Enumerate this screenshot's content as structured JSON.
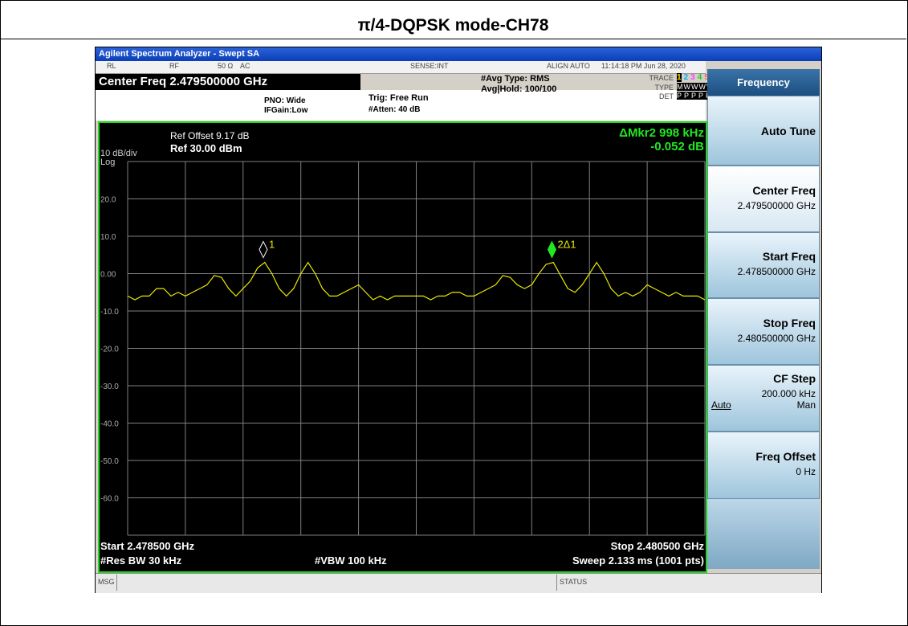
{
  "title": "π/4-DQPSK mode-CH78",
  "window_title": "Agilent Spectrum Analyzer - Swept SA",
  "status": {
    "rl": "RL",
    "rf": "RF",
    "imp": "50 Ω",
    "ac": "AC",
    "sense": "SENSE:INT",
    "align": "ALIGN AUTO",
    "time": "11:14:18 PM Jun 28, 2020"
  },
  "center_freq": "Center Freq 2.479500000 GHz",
  "pno": "PNO: Wide",
  "ifgain": "IFGain:Low",
  "trig": "Trig: Free Run",
  "atten": "#Atten: 40 dB",
  "avg_type": "#Avg Type: RMS",
  "avg_hold": "Avg|Hold: 100/100",
  "trace_info": {
    "trace_label": "TRACE",
    "trace_nums": [
      "1",
      "2",
      "3",
      "4",
      "5",
      "6"
    ],
    "type_label": "TYPE",
    "type_value": "MWWWWW",
    "det_label": "DET",
    "det_value": "PPPPPP"
  },
  "plot": {
    "type": "line",
    "ref_offset": "Ref Offset 9.17 dB",
    "ref": "Ref 30.00 dBm",
    "scale": "10 dB/div",
    "log": "Log",
    "marker_readout": [
      "ΔMkr2 998 kHz",
      "-0.052 dB"
    ],
    "ylim": [
      -70,
      30
    ],
    "yticks": [
      {
        "value": 20,
        "label": "20.0"
      },
      {
        "value": 10,
        "label": "10.0"
      },
      {
        "value": 0,
        "label": "0.00"
      },
      {
        "value": -10,
        "label": "-10.0"
      },
      {
        "value": -20,
        "label": "-20.0"
      },
      {
        "value": -30,
        "label": "-30.0"
      },
      {
        "value": -40,
        "label": "-40.0"
      },
      {
        "value": -50,
        "label": "-50.0"
      },
      {
        "value": -60,
        "label": "-60.0"
      }
    ],
    "xlim": [
      2.4785,
      2.4805
    ],
    "color": "#e8e800",
    "values": [
      -6,
      -7,
      -6,
      -6,
      -4,
      -4,
      -6,
      -5,
      -6,
      -5,
      -4,
      -3,
      -0.5,
      -1,
      -4,
      -6,
      -4,
      -2,
      1.5,
      3,
      0,
      -4,
      -6,
      -4,
      0,
      3,
      0,
      -4,
      -6,
      -6,
      -5,
      -4,
      -3,
      -5,
      -7,
      -6,
      -7,
      -6,
      -6,
      -6,
      -6,
      -6,
      -7,
      -6,
      -6,
      -5,
      -5,
      -6,
      -6,
      -5,
      -4,
      -3,
      -0.5,
      -1,
      -3,
      -4,
      -3,
      0,
      2.5,
      3,
      -0.5,
      -4,
      -5,
      -3,
      0,
      3,
      0,
      -4,
      -6,
      -5,
      -6,
      -5,
      -3,
      -4,
      -5,
      -6,
      -5,
      -6,
      -6,
      -6,
      -7
    ],
    "markers": [
      {
        "label": "1",
        "x": 2.47897,
        "value": 3
      },
      {
        "label": "2Δ1",
        "x": 2.47997,
        "value": 3
      }
    ],
    "start": "Start 2.478500 GHz",
    "stop": "Stop 2.480500 GHz",
    "rbw": "#Res BW 30 kHz",
    "vbw": "#VBW 100 kHz",
    "sweep": "Sweep  2.133 ms (1001 pts)"
  },
  "softkeys": {
    "header": "Frequency",
    "keys": [
      {
        "label": "Auto Tune"
      },
      {
        "label": "Center Freq",
        "value": "2.479500000 GHz"
      },
      {
        "label": "Start Freq",
        "value": "2.478500000 GHz"
      },
      {
        "label": "Stop Freq",
        "value": "2.480500000 GHz"
      },
      {
        "label": "CF Step",
        "value": "200.000 kHz",
        "auto": "Auto",
        "man": "Man"
      },
      {
        "label": "Freq Offset",
        "value": "0 Hz"
      }
    ]
  },
  "msg": "MSG",
  "status_label": "STATUS"
}
